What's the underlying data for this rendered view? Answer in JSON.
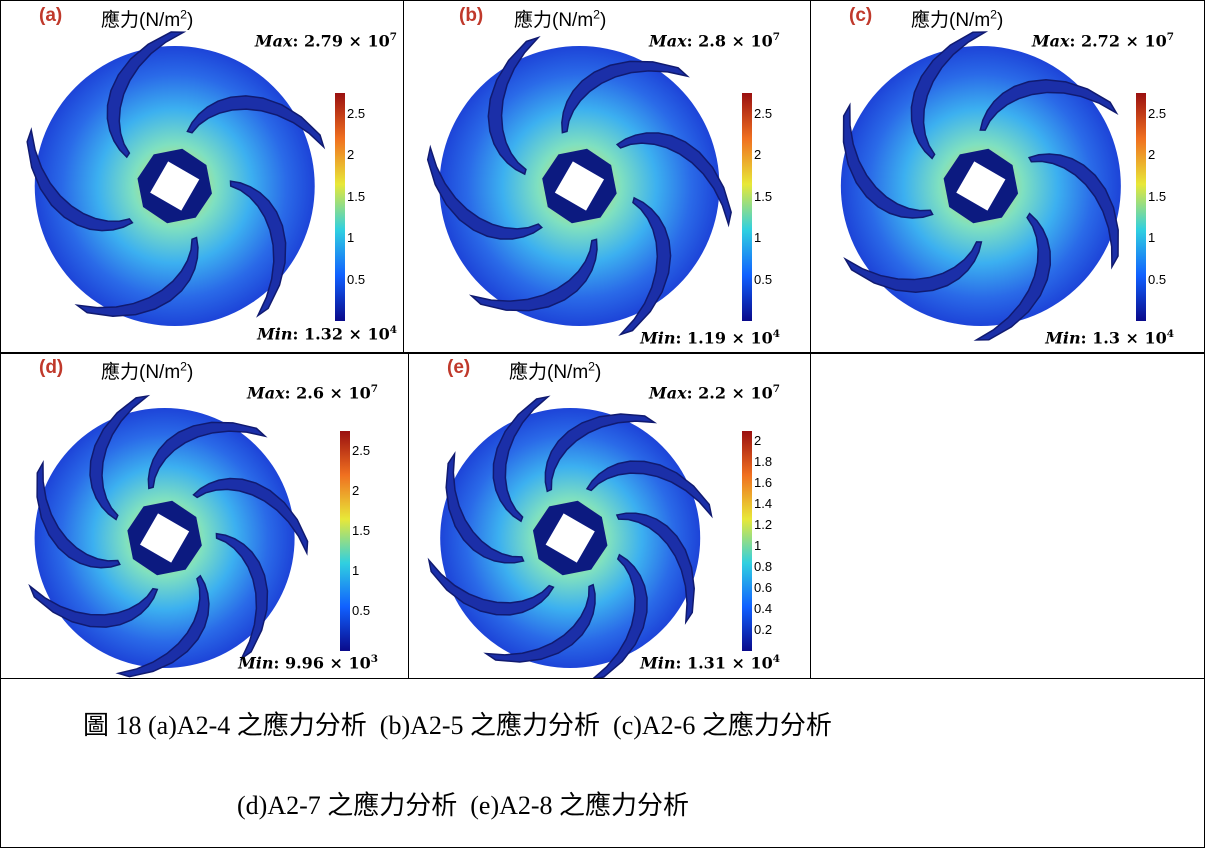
{
  "panels": [
    {
      "label": "(a)",
      "title": {
        "text": "應力(N/m",
        "sup": "2",
        "tail": ")"
      },
      "max": {
        "name": "Max",
        "text": ": 2.79 × 10",
        "sup": "7"
      },
      "min": {
        "name": "Min",
        "text": ": 1.32 × 10",
        "sup": "4"
      },
      "ticks": [
        "0.5",
        "1",
        "1.5",
        "2",
        "2.5"
      ]
    },
    {
      "label": "(b)",
      "title": {
        "text": "應力(N/m",
        "sup": "2",
        "tail": ")"
      },
      "max": {
        "name": "Max",
        "text": ": 2.8 × 10",
        "sup": "7"
      },
      "min": {
        "name": "Min",
        "text": ": 1.19 × 10",
        "sup": "4"
      },
      "ticks": [
        "0.5",
        "1",
        "1.5",
        "2",
        "2.5"
      ]
    },
    {
      "label": "(c)",
      "title": {
        "text": "應力(N/m",
        "sup": "2",
        "tail": ")"
      },
      "max": {
        "name": "Max",
        "text": ": 2.72 × 10",
        "sup": "7"
      },
      "min": {
        "name": "Min",
        "text": ": 1.3 × 10",
        "sup": "4"
      },
      "ticks": [
        "0.5",
        "1",
        "1.5",
        "2",
        "2.5"
      ]
    },
    {
      "label": "(d)",
      "title": {
        "text": "應力(N/m",
        "sup": "2",
        "tail": ")"
      },
      "max": {
        "name": "Max",
        "text": ": 2.6 × 10",
        "sup": "7"
      },
      "min": {
        "name": "Min",
        "text": ": 9.96 × 10",
        "sup": "3"
      },
      "ticks": [
        "0.5",
        "1",
        "1.5",
        "2",
        "2.5"
      ]
    },
    {
      "label": "(e)",
      "title": {
        "text": "應力(N/m",
        "sup": "2",
        "tail": ")"
      },
      "max": {
        "name": "Max",
        "text": ": 2.2 × 10",
        "sup": "7"
      },
      "min": {
        "name": "Min",
        "text": ": 1.31 × 10",
        "sup": "4"
      },
      "ticks": [
        "0.2",
        "0.4",
        "0.6",
        "0.8",
        "1",
        "1.2",
        "1.4",
        "1.6",
        "1.8",
        "2"
      ]
    }
  ],
  "caption": {
    "line1": "圖 18 (a)A2-4 之應力分析  (b)A2-5 之應力分析  (c)A2-6 之應力分析",
    "line2": "(d)A2-7 之應力分析  (e)A2-8 之應力分析"
  }
}
